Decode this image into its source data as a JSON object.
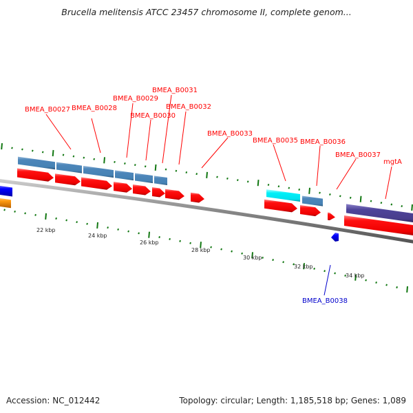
{
  "title": "Brucella melitensis ATCC 23457 chromosome II, complete genom...",
  "footer": {
    "accession": "Accession: NC_012442",
    "summary": "Topology: circular; Length: 1,185,518 bp; Genes: 1,089"
  },
  "colors": {
    "forward_gene": "#ff0000",
    "reverse_gene_label": "#0000cc",
    "tick": "#117711",
    "backbone": "#888888",
    "feature_steelblue": "#4682b4",
    "feature_cyan": "#00e5ee",
    "feature_purple": "#483d8b",
    "feature_blue": "#0000ff",
    "feature_orange": "#ff8c00"
  },
  "scale_labels": [
    "22 kbp",
    "24 kbp",
    "26 kbp",
    "28 kbp",
    "30 kbp",
    "32 kbp",
    "34 kbp"
  ],
  "gene_labels": [
    {
      "name": "BMEA_B0027",
      "strand": "forward"
    },
    {
      "name": "BMEA_B0028",
      "strand": "forward"
    },
    {
      "name": "BMEA_B0029",
      "strand": "forward"
    },
    {
      "name": "BMEA_B0030",
      "strand": "forward"
    },
    {
      "name": "BMEA_B0031",
      "strand": "forward"
    },
    {
      "name": "BMEA_B0032",
      "strand": "forward"
    },
    {
      "name": "BMEA_B0033",
      "strand": "forward"
    },
    {
      "name": "BMEA_B0035",
      "strand": "forward"
    },
    {
      "name": "BMEA_B0036",
      "strand": "forward"
    },
    {
      "name": "BMEA_B0037",
      "strand": "forward"
    },
    {
      "name": "mgtA",
      "strand": "forward"
    },
    {
      "name": "BMEA_B0038",
      "strand": "reverse"
    }
  ]
}
